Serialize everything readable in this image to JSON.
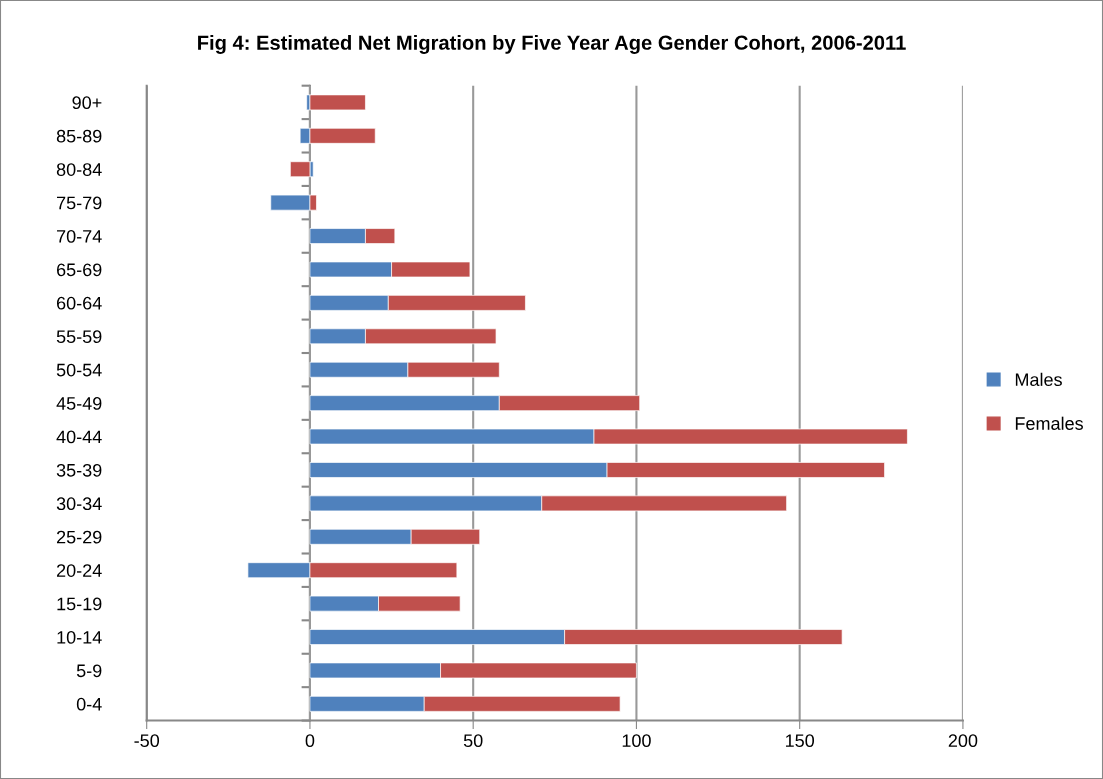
{
  "chart_data": {
    "type": "bar",
    "orientation": "horizontal",
    "stacked": true,
    "title": "Fig 4: Estimated Net Migration by Five Year Age Gender Cohort, 2006-2011",
    "categories": [
      "90+",
      "85-89",
      "80-84",
      "75-79",
      "70-74",
      "65-69",
      "60-64",
      "55-59",
      "50-54",
      "45-49",
      "40-44",
      "35-39",
      "30-34",
      "25-29",
      "20-24",
      "15-19",
      "10-14",
      "5-9",
      "0-4"
    ],
    "series": [
      {
        "name": "Males",
        "color": "#4f81bd",
        "values": [
          -1,
          -3,
          1,
          -12,
          17,
          25,
          24,
          17,
          30,
          58,
          87,
          91,
          71,
          31,
          -19,
          21,
          78,
          40,
          35
        ]
      },
      {
        "name": "Females",
        "color": "#c0504d",
        "values": [
          17,
          20,
          -6,
          2,
          9,
          24,
          42,
          40,
          28,
          43,
          96,
          85,
          75,
          21,
          45,
          25,
          85,
          60,
          60
        ]
      }
    ],
    "xlim": [
      -50,
      200
    ],
    "xticks": [
      -50,
      0,
      50,
      100,
      150,
      200
    ],
    "grid": "x",
    "legend": "right"
  }
}
